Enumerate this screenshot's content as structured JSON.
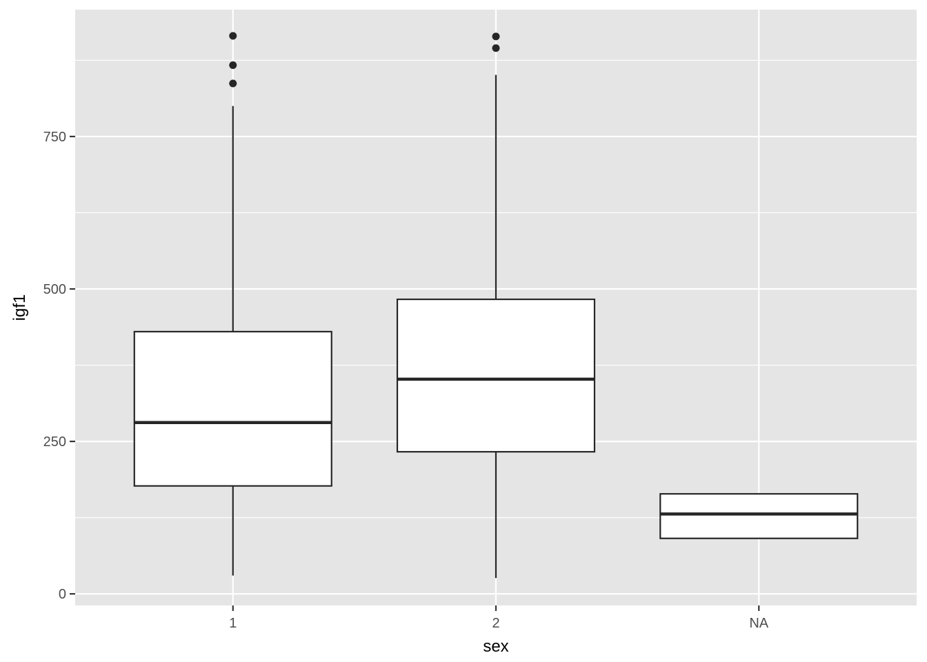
{
  "chart_data": {
    "type": "boxplot",
    "title": "",
    "xlabel": "sex",
    "ylabel": "igf1",
    "categories": [
      "1",
      "2",
      "NA"
    ],
    "ylim": [
      -19,
      958
    ],
    "y_ticks": [
      0,
      250,
      500,
      750
    ],
    "y_tick_labels": [
      "0",
      "250",
      "500",
      "750"
    ],
    "grid": true,
    "colors": {
      "panel_background": "#E5E5E5",
      "grid_line": "#FFFFFF",
      "box_fill": "#FFFFFF",
      "box_stroke": "#262626",
      "outlier": "#262626",
      "tick_text": "#4D4D4D",
      "axis_title": "#000000"
    },
    "boxes": [
      {
        "category": "1",
        "lower_whisker": 30,
        "q1": 177,
        "median": 281,
        "q3": 430,
        "upper_whisker": 800,
        "outliers": [
          837,
          867,
          915
        ]
      },
      {
        "category": "2",
        "lower_whisker": 26,
        "q1": 233,
        "median": 352,
        "q3": 483,
        "upper_whisker": 851,
        "outliers": [
          895,
          914
        ]
      },
      {
        "category": "NA",
        "lower_whisker": 90,
        "q1": 91,
        "median": 131,
        "q3": 164,
        "upper_whisker": 165,
        "outliers": []
      }
    ]
  }
}
